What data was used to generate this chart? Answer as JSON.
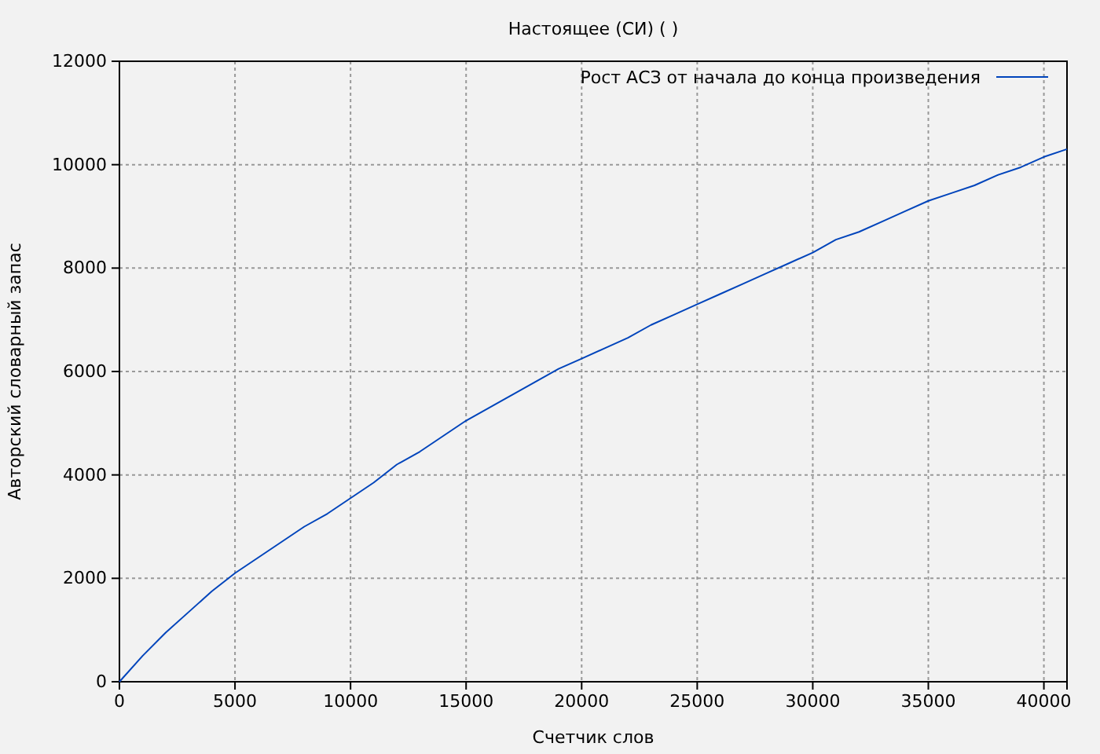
{
  "chart_data": {
    "type": "line",
    "title": "Настоящее (СИ) ( )",
    "xlabel": "Счетчик слов",
    "ylabel": "Авторский словарный запас",
    "xlim": [
      0,
      41000
    ],
    "xticks": [
      0,
      5000,
      10000,
      15000,
      20000,
      25000,
      30000,
      35000,
      40000
    ],
    "ylim": [
      0,
      12000
    ],
    "yticks": [
      0,
      2000,
      4000,
      6000,
      8000,
      10000,
      12000
    ],
    "grid": true,
    "legend": "top right",
    "line_style": "solid",
    "marker": "none",
    "x": [
      0,
      1000,
      2000,
      3000,
      4000,
      5000,
      6000,
      7000,
      8000,
      9000,
      10000,
      11000,
      12000,
      13000,
      14000,
      15000,
      16000,
      17000,
      18000,
      19000,
      20000,
      21000,
      22000,
      23000,
      24000,
      25000,
      26000,
      27000,
      28000,
      29000,
      30000,
      31000,
      32000,
      33000,
      34000,
      35000,
      36000,
      37000,
      38000,
      39000,
      40000,
      41000
    ],
    "series": [
      {
        "name": "Рост АСЗ от начала до конца произведения",
        "color": "#0044bb",
        "values": [
          0,
          500,
          950,
          1350,
          1750,
          2100,
          2400,
          2700,
          3000,
          3250,
          3550,
          3850,
          4200,
          4450,
          4750,
          5050,
          5300,
          5550,
          5800,
          6050,
          6250,
          6450,
          6650,
          6900,
          7100,
          7300,
          7500,
          7700,
          7900,
          8100,
          8300,
          8550,
          8700,
          8900,
          9100,
          9300,
          9450,
          9600,
          9800,
          9950,
          10150,
          10300
        ]
      }
    ]
  }
}
